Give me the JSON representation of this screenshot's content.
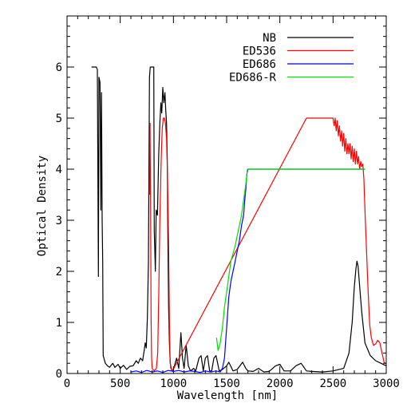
{
  "chart_data": {
    "type": "line",
    "xlabel": "Wavelength [nm]",
    "ylabel": "Optical Density",
    "xlim": [
      0,
      3000
    ],
    "ylim": [
      0,
      7
    ],
    "x_ticks": [
      0,
      500,
      1000,
      1500,
      2000,
      2500,
      3000
    ],
    "y_ticks": [
      0,
      1,
      2,
      3,
      4,
      5,
      6
    ],
    "grid": false,
    "legend_position": "top-right",
    "series": [
      {
        "name": "NB",
        "color": "#000000",
        "points": [
          [
            230,
            6.0
          ],
          [
            275,
            6.0
          ],
          [
            285,
            5.95
          ],
          [
            295,
            1.9
          ],
          [
            300,
            5.8
          ],
          [
            310,
            5.7
          ],
          [
            318,
            3.2
          ],
          [
            324,
            5.5
          ],
          [
            330,
            3.0
          ],
          [
            335,
            2.2
          ],
          [
            340,
            0.35
          ],
          [
            360,
            0.2
          ],
          [
            380,
            0.15
          ],
          [
            400,
            0.12
          ],
          [
            430,
            0.2
          ],
          [
            450,
            0.12
          ],
          [
            480,
            0.18
          ],
          [
            500,
            0.1
          ],
          [
            530,
            0.16
          ],
          [
            560,
            0.08
          ],
          [
            590,
            0.14
          ],
          [
            620,
            0.15
          ],
          [
            650,
            0.25
          ],
          [
            670,
            0.2
          ],
          [
            690,
            0.3
          ],
          [
            710,
            0.25
          ],
          [
            725,
            0.45
          ],
          [
            735,
            0.6
          ],
          [
            745,
            0.5
          ],
          [
            755,
            1.1
          ],
          [
            765,
            2.2
          ],
          [
            775,
            5.8
          ],
          [
            782,
            6.0
          ],
          [
            800,
            6.0
          ],
          [
            815,
            6.0
          ],
          [
            820,
            2.8
          ],
          [
            830,
            2.0
          ],
          [
            838,
            3.2
          ],
          [
            850,
            3.1
          ],
          [
            862,
            4.3
          ],
          [
            872,
            4.9
          ],
          [
            882,
            5.3
          ],
          [
            890,
            5.1
          ],
          [
            900,
            5.6
          ],
          [
            910,
            5.3
          ],
          [
            920,
            5.5
          ],
          [
            928,
            5.15
          ],
          [
            935,
            4.9
          ],
          [
            942,
            4.2
          ],
          [
            948,
            2.6
          ],
          [
            955,
            1.3
          ],
          [
            962,
            0.6
          ],
          [
            970,
            0.2
          ],
          [
            985,
            0.05
          ],
          [
            1000,
            0.08
          ],
          [
            1030,
            0.3
          ],
          [
            1050,
            0.1
          ],
          [
            1070,
            0.8
          ],
          [
            1085,
            0.3
          ],
          [
            1100,
            0.1
          ],
          [
            1120,
            0.55
          ],
          [
            1140,
            0.15
          ],
          [
            1160,
            0.05
          ],
          [
            1190,
            0.1
          ],
          [
            1210,
            0.05
          ],
          [
            1240,
            0.3
          ],
          [
            1260,
            0.35
          ],
          [
            1280,
            0.05
          ],
          [
            1300,
            0.3
          ],
          [
            1320,
            0.35
          ],
          [
            1340,
            0.05
          ],
          [
            1360,
            0.05
          ],
          [
            1380,
            0.3
          ],
          [
            1400,
            0.35
          ],
          [
            1430,
            0.05
          ],
          [
            1460,
            0.08
          ],
          [
            1500,
            0.15
          ],
          [
            1520,
            0.22
          ],
          [
            1560,
            0.05
          ],
          [
            1600,
            0.08
          ],
          [
            1650,
            0.22
          ],
          [
            1680,
            0.1
          ],
          [
            1700,
            0.05
          ],
          [
            1750,
            0.04
          ],
          [
            1800,
            0.1
          ],
          [
            1850,
            0.03
          ],
          [
            1900,
            0.04
          ],
          [
            1960,
            0.15
          ],
          [
            2000,
            0.18
          ],
          [
            2040,
            0.05
          ],
          [
            2100,
            0.05
          ],
          [
            2150,
            0.15
          ],
          [
            2200,
            0.2
          ],
          [
            2250,
            0.05
          ],
          [
            2300,
            0.04
          ],
          [
            2400,
            0.03
          ],
          [
            2500,
            0.05
          ],
          [
            2600,
            0.1
          ],
          [
            2650,
            0.4
          ],
          [
            2680,
            1.0
          ],
          [
            2700,
            1.7
          ],
          [
            2715,
            2.05
          ],
          [
            2725,
            2.2
          ],
          [
            2735,
            2.1
          ],
          [
            2750,
            1.7
          ],
          [
            2770,
            1.2
          ],
          [
            2800,
            0.6
          ],
          [
            2850,
            0.35
          ],
          [
            2900,
            0.25
          ],
          [
            2950,
            0.2
          ],
          [
            3000,
            0.15
          ]
        ]
      },
      {
        "name": "ED536",
        "color": "#ff0000",
        "points": [
          [
            775,
            3.5
          ],
          [
            780,
            4.9
          ],
          [
            785,
            3.3
          ],
          [
            790,
            1.1
          ],
          [
            795,
            0.3
          ],
          [
            800,
            0.1
          ],
          [
            820,
            0.05
          ],
          [
            840,
            0.1
          ],
          [
            852,
            0.4
          ],
          [
            862,
            1.5
          ],
          [
            872,
            3.0
          ],
          [
            885,
            4.2
          ],
          [
            895,
            4.8
          ],
          [
            905,
            5.0
          ],
          [
            915,
            5.0
          ],
          [
            925,
            4.9
          ],
          [
            935,
            4.6
          ],
          [
            945,
            3.8
          ],
          [
            955,
            2.5
          ],
          [
            962,
            1.0
          ],
          [
            968,
            0.3
          ],
          [
            975,
            0.1
          ],
          [
            990,
            0.05
          ],
          [
            2250,
            5.0
          ],
          [
            2450,
            5.0
          ],
          [
            2500,
            5.0
          ],
          [
            2510,
            4.85
          ],
          [
            2520,
            5.0
          ],
          [
            2530,
            4.75
          ],
          [
            2540,
            4.95
          ],
          [
            2550,
            4.65
          ],
          [
            2560,
            4.85
          ],
          [
            2570,
            4.55
          ],
          [
            2580,
            4.75
          ],
          [
            2590,
            4.45
          ],
          [
            2600,
            4.7
          ],
          [
            2610,
            4.35
          ],
          [
            2620,
            4.6
          ],
          [
            2630,
            4.3
          ],
          [
            2640,
            4.5
          ],
          [
            2650,
            4.3
          ],
          [
            2660,
            4.5
          ],
          [
            2670,
            4.2
          ],
          [
            2680,
            4.45
          ],
          [
            2690,
            4.15
          ],
          [
            2700,
            4.4
          ],
          [
            2710,
            4.1
          ],
          [
            2720,
            4.35
          ],
          [
            2730,
            4.1
          ],
          [
            2740,
            4.25
          ],
          [
            2750,
            4.0
          ],
          [
            2760,
            4.15
          ],
          [
            2770,
            4.05
          ],
          [
            2780,
            4.1
          ],
          [
            2790,
            3.8
          ],
          [
            2800,
            3.2
          ],
          [
            2815,
            2.4
          ],
          [
            2830,
            1.6
          ],
          [
            2845,
            0.95
          ],
          [
            2860,
            0.7
          ],
          [
            2880,
            0.55
          ],
          [
            2900,
            0.58
          ],
          [
            2920,
            0.65
          ],
          [
            2940,
            0.6
          ],
          [
            2960,
            0.4
          ],
          [
            2980,
            0.22
          ],
          [
            3000,
            0.18
          ]
        ]
      },
      {
        "name": "ED686",
        "color": "#0000ff",
        "points": [
          [
            600,
            0.03
          ],
          [
            650,
            0.05
          ],
          [
            700,
            0.02
          ],
          [
            750,
            0.06
          ],
          [
            800,
            0.03
          ],
          [
            850,
            0.05
          ],
          [
            900,
            0.02
          ],
          [
            950,
            0.06
          ],
          [
            1000,
            0.04
          ],
          [
            1050,
            0.06
          ],
          [
            1100,
            0.03
          ],
          [
            1150,
            0.05
          ],
          [
            1200,
            0.04
          ],
          [
            1250,
            0.02
          ],
          [
            1300,
            0.05
          ],
          [
            1350,
            0.03
          ],
          [
            1400,
            0.05
          ],
          [
            1440,
            0.03
          ],
          [
            1460,
            0.1
          ],
          [
            1480,
            0.3
          ],
          [
            1500,
            0.9
          ],
          [
            1520,
            1.5
          ],
          [
            1540,
            1.8
          ],
          [
            1560,
            2.0
          ],
          [
            1580,
            2.2
          ],
          [
            1600,
            2.4
          ],
          [
            1620,
            2.6
          ],
          [
            1640,
            2.9
          ],
          [
            1660,
            3.1
          ],
          [
            1670,
            3.4
          ],
          [
            1680,
            3.6
          ],
          [
            1690,
            3.9
          ],
          [
            1700,
            4.0
          ],
          [
            1750,
            4.0
          ],
          [
            2000,
            4.0
          ],
          [
            2500,
            4.0
          ],
          [
            2800,
            4.0
          ]
        ]
      },
      {
        "name": "ED686-R",
        "color": "#00dd00",
        "points": [
          [
            1405,
            0.7
          ],
          [
            1420,
            0.45
          ],
          [
            1440,
            0.6
          ],
          [
            1460,
            0.9
          ],
          [
            1480,
            1.3
          ],
          [
            1500,
            1.6
          ],
          [
            1520,
            1.9
          ],
          [
            1540,
            2.2
          ],
          [
            1560,
            2.35
          ],
          [
            1580,
            2.5
          ],
          [
            1600,
            2.7
          ],
          [
            1620,
            2.9
          ],
          [
            1640,
            3.1
          ],
          [
            1660,
            3.4
          ],
          [
            1680,
            3.7
          ],
          [
            1695,
            4.0
          ],
          [
            1750,
            4.0
          ],
          [
            2000,
            4.0
          ],
          [
            2500,
            4.0
          ],
          [
            2800,
            4.0
          ]
        ]
      }
    ]
  }
}
